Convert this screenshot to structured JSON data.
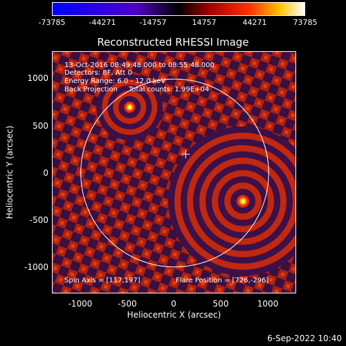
{
  "title": "Reconstructed RHESSI Image",
  "colorbar": {
    "ticks": [
      "-73785",
      "-44271",
      "-14757",
      "14757",
      "44271",
      "73785"
    ],
    "range": [
      -73785,
      73785
    ]
  },
  "info": {
    "time_range": "13-Oct-2016 08:49:48.000 to 08:55:48.000",
    "detectors": "Detectors: 8F, Att 0",
    "energy": "Energy Range: 6.0 - 12.0 keV",
    "method": "Back Projection",
    "counts": "Total counts: 1.99E+04",
    "spin_axis": "Spin Axis = [117,197]",
    "flare_position": "Flare Position = [726,-296]"
  },
  "axes": {
    "xlabel": "Heliocentric X (arcsec)",
    "ylabel": "Heliocentric Y (arcsec)",
    "xticks": [
      "-1000",
      "-500",
      "0",
      "500",
      "1000"
    ],
    "yticks": [
      "1000",
      "500",
      "0",
      "-500",
      "-1000"
    ],
    "xlim": [
      -1300,
      1300
    ],
    "ylim": [
      -1270,
      1270
    ]
  },
  "sources": [
    {
      "x": 726,
      "y": -296
    },
    {
      "x": -480,
      "y": 690
    }
  ],
  "solar_limb_radius": 1000,
  "spin_axis_point": [
    117,
    197
  ],
  "timestamp": "6-Sep-2022 10:40"
}
